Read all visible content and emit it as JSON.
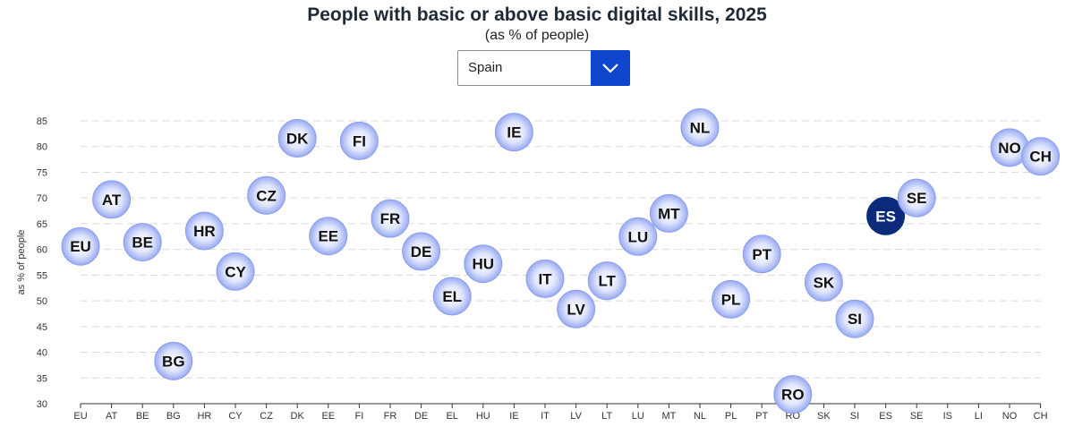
{
  "chart_data": {
    "type": "scatter",
    "title": "People with basic or above basic digital skills, 2025",
    "subtitle": "(as % of people)",
    "ylabel": "as % of people",
    "xlabel": "",
    "ylim": [
      30,
      85
    ],
    "yticks": [
      30,
      35,
      40,
      45,
      50,
      55,
      60,
      65,
      70,
      75,
      80,
      85
    ],
    "grid": true,
    "categories": [
      "EU",
      "AT",
      "BE",
      "BG",
      "HR",
      "CY",
      "CZ",
      "DK",
      "EE",
      "FI",
      "FR",
      "DE",
      "EL",
      "HU",
      "IE",
      "IT",
      "LV",
      "LT",
      "LU",
      "MT",
      "NL",
      "PL",
      "PT",
      "RO",
      "SK",
      "SI",
      "ES",
      "SE",
      "IS",
      "LI",
      "NO",
      "CH"
    ],
    "points": [
      {
        "code": "EU",
        "value": 60.6
      },
      {
        "code": "AT",
        "value": 69.7
      },
      {
        "code": "BE",
        "value": 61.4
      },
      {
        "code": "BG",
        "value": 38.3
      },
      {
        "code": "HR",
        "value": 63.6
      },
      {
        "code": "CY",
        "value": 55.7
      },
      {
        "code": "CZ",
        "value": 70.5
      },
      {
        "code": "DK",
        "value": 81.6
      },
      {
        "code": "EE",
        "value": 62.6
      },
      {
        "code": "FI",
        "value": 81.1
      },
      {
        "code": "FR",
        "value": 66.0
      },
      {
        "code": "DE",
        "value": 59.6
      },
      {
        "code": "EL",
        "value": 50.9
      },
      {
        "code": "HU",
        "value": 57.2
      },
      {
        "code": "IE",
        "value": 82.8
      },
      {
        "code": "IT",
        "value": 54.3
      },
      {
        "code": "LV",
        "value": 48.4
      },
      {
        "code": "LT",
        "value": 53.9
      },
      {
        "code": "LU",
        "value": 62.5
      },
      {
        "code": "MT",
        "value": 67.0
      },
      {
        "code": "NL",
        "value": 83.7
      },
      {
        "code": "PL",
        "value": 50.3
      },
      {
        "code": "PT",
        "value": 59.1
      },
      {
        "code": "RO",
        "value": 31.8
      },
      {
        "code": "SK",
        "value": 53.6
      },
      {
        "code": "SI",
        "value": 46.5
      },
      {
        "code": "ES",
        "value": 66.5
      },
      {
        "code": "SE",
        "value": 70.0
      },
      {
        "code": "NO",
        "value": 79.8
      },
      {
        "code": "CH",
        "value": 78.1
      }
    ],
    "highlight": "ES",
    "colors": {
      "bubble_fill": "#bcc8f7",
      "bubble_stroke": "#8a9cf0",
      "highlight_fill": "#0c2a7c",
      "label": "#111111",
      "highlight_label": "#ffffff",
      "grid": "#d9d9d9",
      "axis": "#333333"
    }
  },
  "selector": {
    "selected": "Spain",
    "button_icon": "chevron-down-icon",
    "accent": "#0e47cb"
  }
}
